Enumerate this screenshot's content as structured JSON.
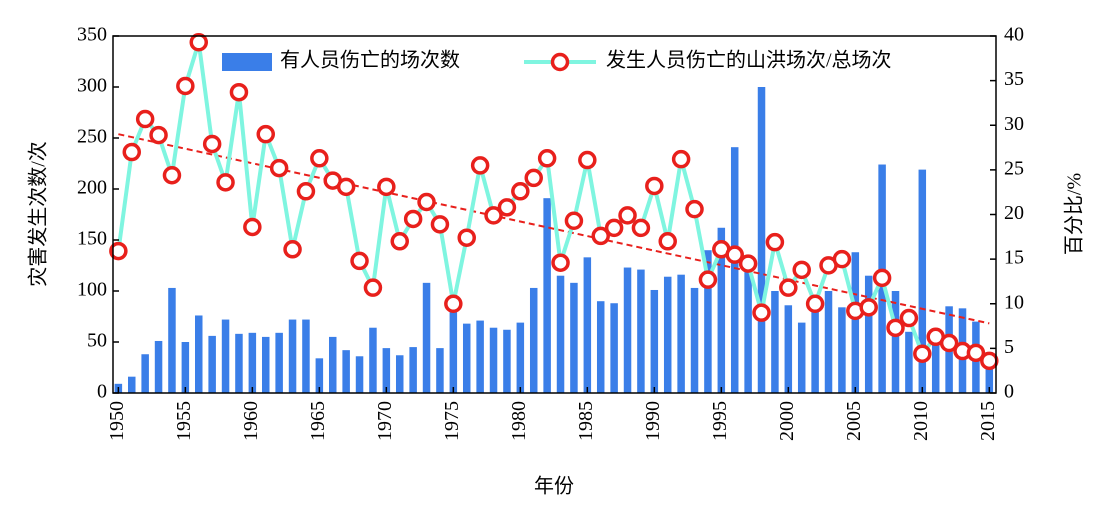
{
  "chart_data": {
    "type": "bar-line",
    "x": [
      1950,
      1951,
      1952,
      1953,
      1954,
      1955,
      1956,
      1957,
      1958,
      1959,
      1960,
      1961,
      1962,
      1963,
      1964,
      1965,
      1966,
      1967,
      1968,
      1969,
      1970,
      1971,
      1972,
      1973,
      1974,
      1975,
      1976,
      1977,
      1978,
      1979,
      1980,
      1981,
      1982,
      1983,
      1984,
      1985,
      1986,
      1987,
      1988,
      1989,
      1990,
      1991,
      1992,
      1993,
      1994,
      1995,
      1996,
      1997,
      1998,
      1999,
      2000,
      2001,
      2002,
      2003,
      2004,
      2005,
      2006,
      2007,
      2008,
      2009,
      2010,
      2011,
      2012,
      2013,
      2014,
      2015
    ],
    "xlabel": "年份",
    "ylabel": "灾害发生次数/次",
    "y2label": "百分比/%",
    "xlim": [
      1949.6,
      2015.5
    ],
    "xticks": [
      1950,
      1955,
      1960,
      1965,
      1970,
      1975,
      1980,
      1985,
      1990,
      1995,
      2000,
      2005,
      2010,
      2015
    ],
    "ylim": [
      0,
      350
    ],
    "yticks": [
      0,
      50,
      100,
      150,
      200,
      250,
      300,
      350
    ],
    "y2lim": [
      0,
      40
    ],
    "y2ticks": [
      0,
      5,
      10,
      15,
      20,
      25,
      30,
      35,
      40
    ],
    "legend": "top",
    "series": [
      {
        "name": "有人员伤亡的场次数",
        "kind": "bar",
        "axis": "y",
        "color": "#3a7ee8",
        "values": [
          9,
          16,
          38,
          51,
          103,
          50,
          76,
          56,
          72,
          58,
          59,
          55,
          59,
          72,
          72,
          34,
          55,
          42,
          36,
          64,
          44,
          37,
          45,
          108,
          44,
          82,
          68,
          71,
          64,
          62,
          69,
          103,
          191,
          115,
          108,
          133,
          90,
          88,
          123,
          121,
          101,
          114,
          116,
          103,
          140,
          162,
          241,
          120,
          300,
          100,
          86,
          69,
          85,
          100,
          84,
          138,
          115,
          224,
          100,
          60,
          219,
          55,
          85,
          83,
          70,
          40
        ]
      },
      {
        "name": "发生人员伤亡的山洪场次/总场次",
        "kind": "line",
        "axis": "y2",
        "color": "#7ff5e0",
        "marker_color": "#e8201c",
        "values": [
          15.9,
          27,
          30.7,
          28.9,
          24.4,
          34.4,
          39.3,
          27.9,
          23.6,
          33.7,
          18.6,
          29,
          25.2,
          16.1,
          22.6,
          26.3,
          23.8,
          23.1,
          14.8,
          11.8,
          23.1,
          17,
          19.5,
          21.4,
          18.9,
          10,
          17.4,
          25.5,
          19.9,
          20.8,
          22.6,
          24.1,
          26.3,
          14.6,
          19.3,
          26.1,
          17.6,
          18.5,
          19.9,
          18.5,
          23.2,
          17,
          26.2,
          20.6,
          12.7,
          16.1,
          15.5,
          14.5,
          9,
          16.9,
          11.8,
          13.8,
          10,
          14.3,
          15,
          9.2,
          9.6,
          12.9,
          7.3,
          8.4,
          4.4,
          6.3,
          5.6,
          4.7,
          4.5,
          3.6
        ]
      }
    ],
    "trendline": {
      "axis": "y2",
      "color": "#e8201c",
      "x": [
        1950,
        2015
      ],
      "values": [
        29,
        7.8
      ]
    }
  }
}
